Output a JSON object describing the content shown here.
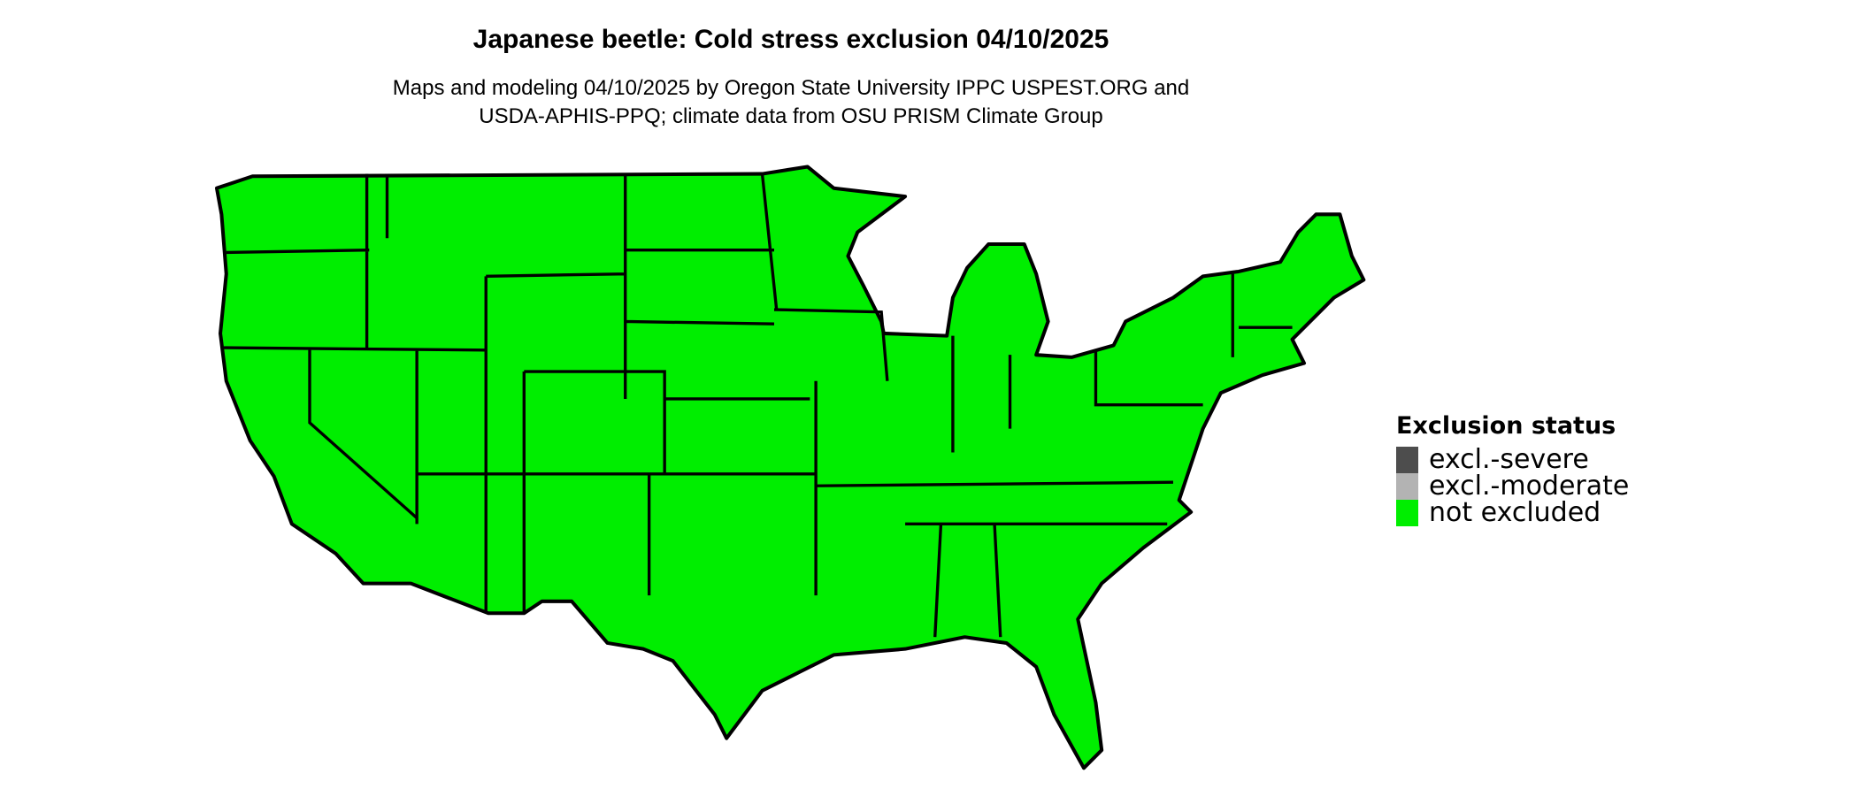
{
  "title": "Japanese beetle: Cold stress exclusion 04/10/2025",
  "subtitle_line1": "Maps and modeling 04/10/2025 by Oregon State University IPPC USPEST.ORG and",
  "subtitle_line2": "USDA-APHIS-PPQ; climate data from OSU PRISM Climate Group",
  "legend": {
    "title": "Exclusion status",
    "items": [
      {
        "label": "excl.-severe",
        "color": "#4d4d4d"
      },
      {
        "label": "excl.-moderate",
        "color": "#b3b3b3"
      },
      {
        "label": "not excluded",
        "color": "#00ee00"
      }
    ]
  },
  "map": {
    "region": "Contiguous United States",
    "fill_status": "not excluded",
    "fill_color": "#00ee00",
    "border_color": "#000000"
  }
}
